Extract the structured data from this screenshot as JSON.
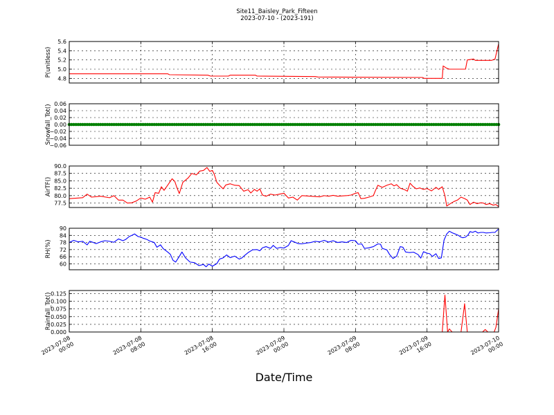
{
  "chart_data": {
    "type": "line",
    "title": "Site11_Baisley_Park_Fifteen",
    "subtitle": "2023-07-10 - (2023-191)",
    "xlabel": "Date/Time",
    "x_ticks": [
      {
        "line1": "2023-07-08",
        "line2": "00:00",
        "hours": 0
      },
      {
        "line1": "2023-07-08",
        "line2": "08:00",
        "hours": 8
      },
      {
        "line1": "2023-07-08",
        "line2": "16:00",
        "hours": 16
      },
      {
        "line1": "2023-07-09",
        "line2": "00:00",
        "hours": 24
      },
      {
        "line1": "2023-07-09",
        "line2": "08:00",
        "hours": 32
      },
      {
        "line1": "2023-07-09",
        "line2": "16:00",
        "hours": 40
      },
      {
        "line1": "2023-07-10",
        "line2": "00:00",
        "hours": 48
      }
    ],
    "xlim_hours": [
      0,
      48
    ],
    "grid": true,
    "panels": [
      {
        "ylabel": "P(unitless)",
        "ylim": [
          4.7,
          5.6
        ],
        "yticks": [
          4.8,
          5.0,
          5.2,
          5.4,
          5.6
        ],
        "tick_labels": [
          "4.8",
          "5.0",
          "5.2",
          "5.4",
          "5.6"
        ],
        "color": "#ff0000",
        "style": "line",
        "points": [
          [
            0,
            4.9
          ],
          [
            11,
            4.9
          ],
          [
            11.2,
            4.88
          ],
          [
            15.5,
            4.87
          ],
          [
            15.8,
            4.85
          ],
          [
            17.8,
            4.85
          ],
          [
            18,
            4.87
          ],
          [
            20.8,
            4.87
          ],
          [
            21,
            4.85
          ],
          [
            27.5,
            4.84
          ],
          [
            27.8,
            4.83
          ],
          [
            39.5,
            4.82
          ],
          [
            39.7,
            4.8
          ],
          [
            41.7,
            4.8
          ],
          [
            41.8,
            5.07
          ],
          [
            42.2,
            5.02
          ],
          [
            42.5,
            5.0
          ],
          [
            44.3,
            5.0
          ],
          [
            44.5,
            5.2
          ],
          [
            45.2,
            5.22
          ],
          [
            45.4,
            5.19
          ],
          [
            47.2,
            5.19
          ],
          [
            47.6,
            5.22
          ],
          [
            48,
            5.55
          ]
        ]
      },
      {
        "ylabel": "Snowfall_Tot()",
        "ylim": [
          -0.06,
          0.06
        ],
        "yticks": [
          -0.06,
          -0.04,
          -0.02,
          0.0,
          0.02,
          0.04,
          0.06
        ],
        "tick_labels": [
          "−0.06",
          "−0.04",
          "−0.02",
          "0.00",
          "0.02",
          "0.04",
          "0.06"
        ],
        "color": "#008000",
        "style": "dots",
        "constant_value": 0.0,
        "interval_minutes": 15
      },
      {
        "ylabel": "AirTF()",
        "ylim": [
          76,
          90
        ],
        "yticks": [
          77.5,
          80.0,
          82.5,
          85.0,
          87.5,
          90.0
        ],
        "tick_labels": [
          "77.5",
          "80.0",
          "82.5",
          "85.0",
          "87.5",
          "90.0"
        ],
        "color": "#ff0000",
        "style": "line",
        "points": [
          [
            0,
            79
          ],
          [
            1,
            79.2
          ],
          [
            1.5,
            79.3
          ],
          [
            2,
            80.5
          ],
          [
            2.5,
            79.5
          ],
          [
            3.5,
            79.8
          ],
          [
            4.5,
            79.3
          ],
          [
            5,
            80
          ],
          [
            5.5,
            78.5
          ],
          [
            6,
            78.5
          ],
          [
            6.5,
            77.5
          ],
          [
            7,
            77.6
          ],
          [
            7.5,
            78.2
          ],
          [
            8,
            79.2
          ],
          [
            8.5,
            78.8
          ],
          [
            9,
            79.5
          ],
          [
            9.3,
            77.8
          ],
          [
            9.6,
            81
          ],
          [
            10,
            80.8
          ],
          [
            10.3,
            83
          ],
          [
            10.6,
            81.8
          ],
          [
            11,
            83.5
          ],
          [
            11.5,
            85.7
          ],
          [
            11.8,
            84.8
          ],
          [
            12,
            83
          ],
          [
            12.3,
            80.7
          ],
          [
            12.7,
            84.5
          ],
          [
            13.3,
            86
          ],
          [
            13.7,
            87.5
          ],
          [
            14.2,
            87
          ],
          [
            14.6,
            88.3
          ],
          [
            15,
            88.5
          ],
          [
            15.4,
            89.5
          ],
          [
            15.7,
            88.2
          ],
          [
            16,
            88.5
          ],
          [
            16.2,
            87.3
          ],
          [
            16.5,
            84.5
          ],
          [
            16.8,
            83.5
          ],
          [
            17.2,
            82.3
          ],
          [
            17.5,
            83.6
          ],
          [
            18,
            84
          ],
          [
            18.5,
            83.5
          ],
          [
            19,
            83.4
          ],
          [
            19.5,
            81.5
          ],
          [
            20,
            82
          ],
          [
            20.3,
            80.9
          ],
          [
            20.7,
            82.1
          ],
          [
            21,
            81.5
          ],
          [
            21.3,
            82.3
          ],
          [
            21.6,
            80.2
          ],
          [
            22,
            79.8
          ],
          [
            22.5,
            80.5
          ],
          [
            23,
            80.2
          ],
          [
            23.5,
            80.5
          ],
          [
            24,
            80.8
          ],
          [
            24.5,
            79.2
          ],
          [
            25,
            79.5
          ],
          [
            25.5,
            78.5
          ],
          [
            26,
            80
          ],
          [
            27,
            79.8
          ],
          [
            28,
            79.6
          ],
          [
            28.5,
            80
          ],
          [
            29,
            79.8
          ],
          [
            29.5,
            80.1
          ],
          [
            30,
            79.8
          ],
          [
            31,
            80
          ],
          [
            31.5,
            80.2
          ],
          [
            32,
            80.8
          ],
          [
            32.3,
            81
          ],
          [
            32.6,
            79
          ],
          [
            33,
            79.1
          ],
          [
            33.5,
            79.5
          ],
          [
            34,
            80
          ],
          [
            34.2,
            81.5
          ],
          [
            34.5,
            83.5
          ],
          [
            35,
            82.8
          ],
          [
            35.5,
            83.5
          ],
          [
            36,
            84
          ],
          [
            36.3,
            83.3
          ],
          [
            36.6,
            83.7
          ],
          [
            37,
            82.5
          ],
          [
            37.5,
            82
          ],
          [
            37.8,
            81.5
          ],
          [
            38.1,
            84.2
          ],
          [
            38.4,
            83.2
          ],
          [
            38.8,
            82.3
          ],
          [
            39.2,
            82.6
          ],
          [
            39.6,
            82.1
          ],
          [
            40,
            82.4
          ],
          [
            40.5,
            81.6
          ],
          [
            41,
            82.8
          ],
          [
            41.3,
            82.1
          ],
          [
            41.7,
            83
          ],
          [
            42,
            80
          ],
          [
            42.2,
            76.5
          ],
          [
            42.6,
            77.3
          ],
          [
            43,
            78
          ],
          [
            43.4,
            78.5
          ],
          [
            43.8,
            79.5
          ],
          [
            44.2,
            79
          ],
          [
            44.5,
            78.5
          ],
          [
            44.8,
            77
          ],
          [
            45.2,
            77.8
          ],
          [
            45.6,
            77.3
          ],
          [
            46,
            77.6
          ],
          [
            46.3,
            77.5
          ],
          [
            46.6,
            77
          ],
          [
            47,
            77.3
          ],
          [
            47.4,
            76.8
          ],
          [
            47.7,
            77
          ],
          [
            48,
            76.3
          ]
        ]
      },
      {
        "ylabel": "RH(%)",
        "ylim": [
          55,
          90
        ],
        "yticks": [
          60,
          66,
          72,
          78,
          84,
          90
        ],
        "tick_labels": [
          "60",
          "66",
          "72",
          "78",
          "84",
          "90"
        ],
        "color": "#0000ff",
        "style": "line",
        "points": [
          [
            0,
            78
          ],
          [
            0.5,
            79.8
          ],
          [
            1,
            78.5
          ],
          [
            1.5,
            79
          ],
          [
            2,
            76
          ],
          [
            2.3,
            79
          ],
          [
            2.7,
            78
          ],
          [
            3,
            77
          ],
          [
            3.5,
            78.5
          ],
          [
            4,
            79.5
          ],
          [
            4.5,
            79
          ],
          [
            5,
            78.2
          ],
          [
            5.5,
            81
          ],
          [
            6,
            79.5
          ],
          [
            6.3,
            80.5
          ],
          [
            6.7,
            83
          ],
          [
            7,
            84
          ],
          [
            7.3,
            85.2
          ],
          [
            7.7,
            83
          ],
          [
            8,
            82.5
          ],
          [
            8.3,
            81.5
          ],
          [
            8.7,
            80.5
          ],
          [
            9,
            79.2
          ],
          [
            9.5,
            78
          ],
          [
            9.8,
            74
          ],
          [
            10.2,
            76
          ],
          [
            10.5,
            72.8
          ],
          [
            11,
            70
          ],
          [
            11.3,
            68
          ],
          [
            11.6,
            63
          ],
          [
            11.9,
            61.5
          ],
          [
            12.3,
            66.2
          ],
          [
            12.6,
            70
          ],
          [
            13,
            65
          ],
          [
            13.5,
            61.5
          ],
          [
            14,
            61
          ],
          [
            14.5,
            58.5
          ],
          [
            15,
            59.5
          ],
          [
            15.3,
            57.5
          ],
          [
            15.6,
            59.8
          ],
          [
            16,
            58
          ],
          [
            16.5,
            60.2
          ],
          [
            16.8,
            64
          ],
          [
            17.2,
            65
          ],
          [
            17.6,
            67.5
          ],
          [
            18,
            65.2
          ],
          [
            18.5,
            66.5
          ],
          [
            19,
            64
          ],
          [
            19.3,
            65
          ],
          [
            19.6,
            67
          ],
          [
            20,
            69.5
          ],
          [
            20.5,
            71.8
          ],
          [
            21,
            72
          ],
          [
            21.3,
            71
          ],
          [
            21.6,
            73.5
          ],
          [
            22,
            74.5
          ],
          [
            22.5,
            73
          ],
          [
            22.8,
            75.5
          ],
          [
            23.2,
            73
          ],
          [
            23.6,
            73.8
          ],
          [
            24,
            73.3
          ],
          [
            24.5,
            75.5
          ],
          [
            24.8,
            79.5
          ],
          [
            25.3,
            78
          ],
          [
            25.6,
            77
          ],
          [
            26,
            76.8
          ],
          [
            26.5,
            77.5
          ],
          [
            27,
            78
          ],
          [
            27.5,
            79
          ],
          [
            28,
            78.5
          ],
          [
            28.5,
            79.8
          ],
          [
            29,
            78.3
          ],
          [
            29.5,
            79.5
          ],
          [
            30,
            78
          ],
          [
            30.5,
            78.5
          ],
          [
            31,
            78
          ],
          [
            31.5,
            79.8
          ],
          [
            32,
            79.5
          ],
          [
            32.3,
            76.5
          ],
          [
            32.7,
            76.8
          ],
          [
            33,
            73
          ],
          [
            33.5,
            73.5
          ],
          [
            34,
            74.5
          ],
          [
            34.5,
            76.8
          ],
          [
            34.8,
            76.5
          ],
          [
            35,
            73
          ],
          [
            35.5,
            71.8
          ],
          [
            35.8,
            68
          ],
          [
            36.2,
            64.5
          ],
          [
            36.6,
            66.5
          ],
          [
            37,
            74.5
          ],
          [
            37.3,
            74
          ],
          [
            37.6,
            70
          ],
          [
            38,
            69.5
          ],
          [
            38.5,
            69.8
          ],
          [
            39,
            67.8
          ],
          [
            39.3,
            64.8
          ],
          [
            39.6,
            70.2
          ],
          [
            40,
            69
          ],
          [
            40.3,
            68.5
          ],
          [
            40.6,
            66.2
          ],
          [
            41,
            68.5
          ],
          [
            41.3,
            64.5
          ],
          [
            41.6,
            65
          ],
          [
            41.9,
            80
          ],
          [
            42.2,
            85.2
          ],
          [
            42.5,
            87.5
          ],
          [
            42.8,
            86.2
          ],
          [
            43.2,
            85
          ],
          [
            43.5,
            84
          ],
          [
            43.8,
            82.5
          ],
          [
            44,
            82
          ],
          [
            44.3,
            82.5
          ],
          [
            44.6,
            84.5
          ],
          [
            44.8,
            87.2
          ],
          [
            45.1,
            86.5
          ],
          [
            45.4,
            87.5
          ],
          [
            45.7,
            86
          ],
          [
            46,
            86.5
          ],
          [
            46.3,
            86.5
          ],
          [
            46.6,
            86
          ],
          [
            47,
            86.2
          ],
          [
            47.3,
            86.5
          ],
          [
            47.6,
            86.5
          ],
          [
            48,
            89.5
          ]
        ]
      },
      {
        "ylabel": "Rainfall_Tot()",
        "ylim": [
          0.0,
          0.135
        ],
        "yticks": [
          0.0,
          0.025,
          0.05,
          0.075,
          0.1,
          0.125
        ],
        "tick_labels": [
          "0.000",
          "0.025",
          "0.050",
          "0.075",
          "0.100",
          "0.125"
        ],
        "color": "#ff0000",
        "style": "line",
        "points": [
          [
            0,
            0
          ],
          [
            41.7,
            0
          ],
          [
            42,
            0.12
          ],
          [
            42.3,
            0
          ],
          [
            42.5,
            0.01
          ],
          [
            42.8,
            0
          ],
          [
            43.8,
            0
          ],
          [
            44.2,
            0.092
          ],
          [
            44.5,
            0
          ],
          [
            46.2,
            0
          ],
          [
            46.5,
            0.008
          ],
          [
            46.8,
            0
          ],
          [
            47.5,
            0
          ],
          [
            47.7,
            0.015
          ],
          [
            48,
            0.075
          ]
        ]
      }
    ]
  }
}
